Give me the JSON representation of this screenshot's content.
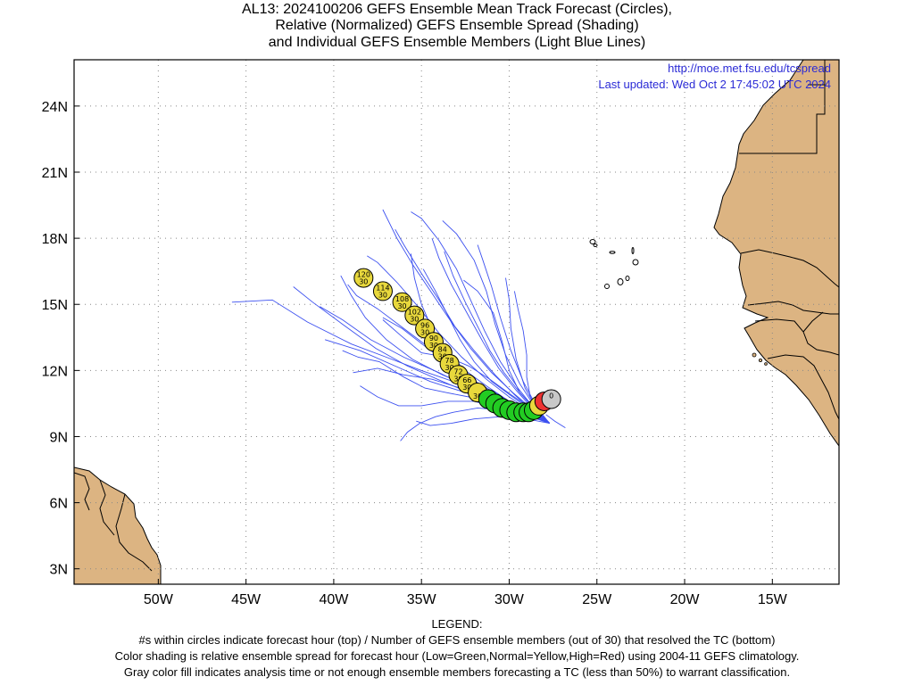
{
  "header": {
    "title_line1": "AL13: 2024100206 GEFS Ensemble Mean Track Forecast (Circles),",
    "title_line2": "Relative (Normalized) GEFS Ensemble Spread (Shading)",
    "title_line3": "and Individual GEFS Ensemble Members (Light Blue Lines)"
  },
  "credit": {
    "url": "http://moe.met.fsu.edu/tcspread",
    "updated": "Last updated: Wed Oct 2 17:45:02 UTC 2024"
  },
  "axes": {
    "lon_labels": [
      "50W",
      "45W",
      "40W",
      "35W",
      "30W",
      "25W",
      "20W",
      "15W"
    ],
    "lat_labels": [
      "24N",
      "21N",
      "18N",
      "15N",
      "12N",
      "9N",
      "6N",
      "3N"
    ],
    "lon_range": [
      -54.8,
      -11.2
    ],
    "lat_range": [
      2.3,
      26.1
    ],
    "grid": "dotted"
  },
  "colors": {
    "land": "#dcb482",
    "ocean": "#ffffff",
    "member_tracks": "#3c50f0",
    "spread_low": "#22cc22",
    "spread_normal": "#e8d83c",
    "spread_high": "#ee3333",
    "analysis": "#c8c8c8"
  },
  "track": {
    "points": [
      {
        "hour": "0",
        "members": "",
        "lon": -27.6,
        "lat": 10.7,
        "spread": "analysis"
      },
      {
        "hour": "",
        "members": "",
        "lon": -28.0,
        "lat": 10.6,
        "spread": "high"
      },
      {
        "hour": "",
        "members": "",
        "lon": -28.3,
        "lat": 10.4,
        "spread": "normal"
      },
      {
        "hour": "",
        "members": "",
        "lon": -28.6,
        "lat": 10.2,
        "spread": "low"
      },
      {
        "hour": "",
        "members": "",
        "lon": -28.9,
        "lat": 10.1,
        "spread": "low"
      },
      {
        "hour": "",
        "members": "",
        "lon": -29.2,
        "lat": 10.1,
        "spread": "low"
      },
      {
        "hour": "",
        "members": "",
        "lon": -29.6,
        "lat": 10.1,
        "spread": "low"
      },
      {
        "hour": "",
        "members": "",
        "lon": -30.0,
        "lat": 10.2,
        "spread": "low"
      },
      {
        "hour": "",
        "members": "",
        "lon": -30.4,
        "lat": 10.3,
        "spread": "low"
      },
      {
        "hour": "",
        "members": "",
        "lon": -30.8,
        "lat": 10.5,
        "spread": "low"
      },
      {
        "hour": "",
        "members": "",
        "lon": -31.2,
        "lat": 10.7,
        "spread": "low"
      },
      {
        "hour": "",
        "members": "30",
        "lon": -31.8,
        "lat": 11.0,
        "spread": "normal"
      },
      {
        "hour": "66",
        "members": "30",
        "lon": -32.4,
        "lat": 11.4,
        "spread": "normal"
      },
      {
        "hour": "72",
        "members": "30",
        "lon": -32.9,
        "lat": 11.8,
        "spread": "normal"
      },
      {
        "hour": "78",
        "members": "30",
        "lon": -33.4,
        "lat": 12.3,
        "spread": "normal"
      },
      {
        "hour": "84",
        "members": "30",
        "lon": -33.8,
        "lat": 12.8,
        "spread": "normal"
      },
      {
        "hour": "90",
        "members": "30",
        "lon": -34.3,
        "lat": 13.3,
        "spread": "normal"
      },
      {
        "hour": "96",
        "members": "30",
        "lon": -34.8,
        "lat": 13.9,
        "spread": "normal"
      },
      {
        "hour": "102",
        "members": "30",
        "lon": -35.4,
        "lat": 14.5,
        "spread": "normal"
      },
      {
        "hour": "108",
        "members": "30",
        "lon": -36.1,
        "lat": 15.1,
        "spread": "normal"
      },
      {
        "hour": "114",
        "members": "30",
        "lon": -37.2,
        "lat": 15.6,
        "spread": "normal"
      },
      {
        "hour": "120",
        "members": "30",
        "lon": -38.3,
        "lat": 16.2,
        "spread": "normal"
      }
    ]
  },
  "legend": {
    "heading": "LEGEND:",
    "line1": "#s within circles indicate forecast hour (top) / Number of GEFS ensemble members (out of 30) that resolved the TC (bottom)",
    "line2": "Color shading is relative ensemble spread for forecast hour (Low=Green,Normal=Yellow,High=Red) using 2004-11 GEFS climatology.",
    "line3": "Gray color fill indicates analysis time or not enough ensemble members forecasting a TC (less than 50%) to warrant classification."
  }
}
